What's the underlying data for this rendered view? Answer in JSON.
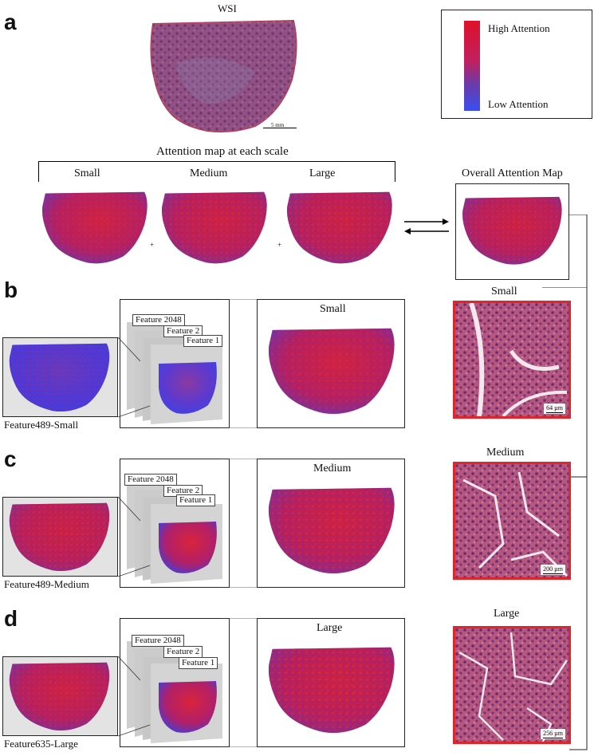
{
  "panels": {
    "a": "a",
    "b": "b",
    "c": "c",
    "d": "d"
  },
  "wsi": {
    "title": "WSI",
    "scale_text": "5 mm"
  },
  "legend": {
    "high": "High Attention",
    "low": "Low Attention",
    "color_high": "#e0102a",
    "color_low": "#3a4ef0"
  },
  "attention_maps": {
    "title": "Attention map at each scale",
    "small": "Small",
    "medium": "Medium",
    "large": "Large",
    "plus": "+",
    "overall": "Overall Attention Map"
  },
  "row_b": {
    "feature_top": "Feature 2048",
    "feature_mid": "Feature 2",
    "feature_bot": "Feature 1",
    "caption": "Feature489-Small",
    "map_title": "Small"
  },
  "row_c": {
    "feature_top": "Feature 2048",
    "feature_mid": "Feature 2",
    "feature_bot": "Feature 1",
    "caption": "Feature489-Medium",
    "map_title": "Medium"
  },
  "row_d": {
    "feature_top": "Feature 2048",
    "feature_mid": "Feature 2",
    "feature_bot": "Feature 1",
    "caption": "Feature635-Large",
    "map_title": "Large"
  },
  "histology": {
    "small_label": "Small",
    "small_scale": "64 µm",
    "medium_label": "Medium",
    "medium_scale": "200 µm",
    "large_label": "Large",
    "large_scale": "256 µm"
  }
}
